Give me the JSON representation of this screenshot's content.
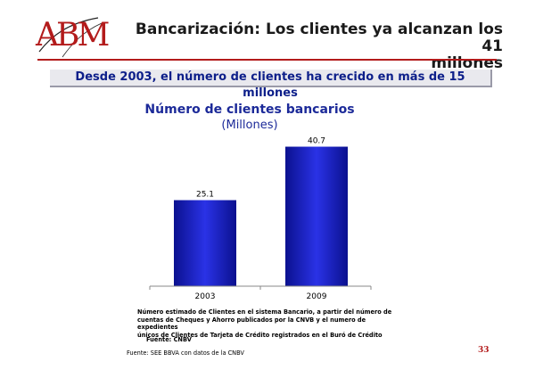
{
  "brand": {
    "logo_text": "ABM",
    "accent_color": "#b31b1b"
  },
  "header": {
    "title_line1": "Bancarización: Los clientes ya alcanzan los 41",
    "title_line2": "millones"
  },
  "subtitle": "Desde 2003, el número de clientes ha crecido en más de 15 millones",
  "chart_data": {
    "type": "bar",
    "title": "Número de clientes bancarios",
    "subtitle": "(Millones)",
    "categories": [
      "2003",
      "2009"
    ],
    "values": [
      25.1,
      40.7
    ],
    "data_labels": [
      "25.1",
      "40.7"
    ],
    "ylim": [
      0,
      45
    ],
    "grid": false,
    "bar_color": "#1a22c8",
    "xlabel": "",
    "ylabel": ""
  },
  "note": {
    "line1": "Número estimado de Clientes en el sistema Bancario, a partir del número de",
    "line2": "cuentas de Cheques y Ahorro publicados por la CNVB y el numero de expedientes",
    "line3": "únicos de Clientes de Tarjeta de Crédito registrados en el Buró de Crédito",
    "fuente": "Fuente: CNBV"
  },
  "source": "Fuente: SEE BBVA con datos de la CNBV",
  "page_number": "33"
}
